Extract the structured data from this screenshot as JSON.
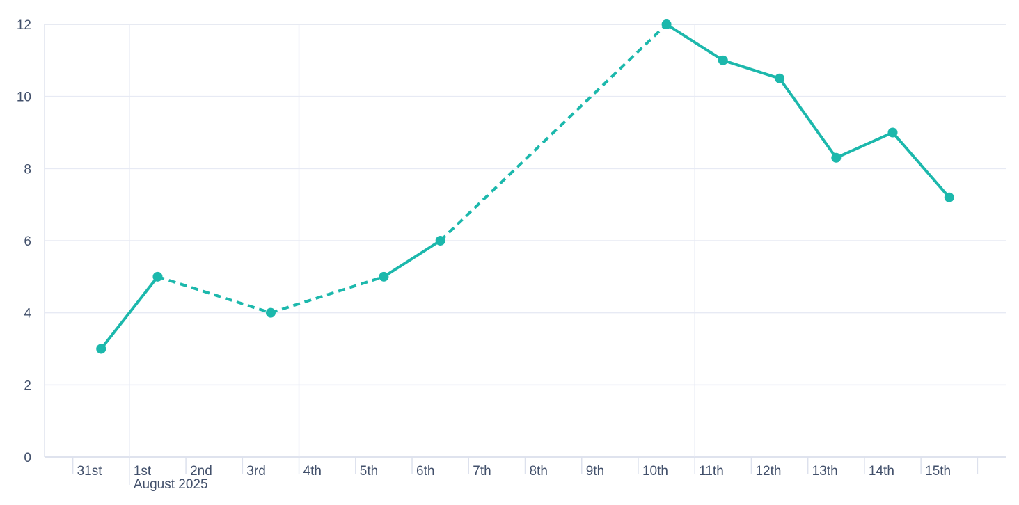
{
  "chart_data": {
    "type": "line",
    "title": "",
    "xlabel": "",
    "ylabel": "",
    "ylim": [
      0,
      12
    ],
    "x_unit": "day",
    "legend": "none",
    "series": [
      {
        "name": "daily-values",
        "color": "#1cb8ac",
        "marker": "circle",
        "gap_segments_dashed": true,
        "points": [
          {
            "day_label": "31st",
            "day_offset": 0,
            "value": 3
          },
          {
            "day_label": "1st",
            "day_offset": 1,
            "value": 5
          },
          {
            "day_label": "3rd",
            "day_offset": 3,
            "value": 4
          },
          {
            "day_label": "5th",
            "day_offset": 5,
            "value": 5
          },
          {
            "day_label": "6th",
            "day_offset": 6,
            "value": 6
          },
          {
            "day_label": "10th",
            "day_offset": 10,
            "value": 12
          },
          {
            "day_label": "11th",
            "day_offset": 11,
            "value": 11
          },
          {
            "day_label": "12th",
            "day_offset": 12,
            "value": 10.5
          },
          {
            "day_label": "13th",
            "day_offset": 13,
            "value": 8.3
          },
          {
            "day_label": "14th",
            "day_offset": 14,
            "value": 9
          },
          {
            "day_label": "15th",
            "day_offset": 15,
            "value": 7.2
          }
        ]
      }
    ],
    "x_axis": {
      "tick_labels": [
        "31st",
        "1st",
        "2nd",
        "3rd",
        "4th",
        "5th",
        "6th",
        "7th",
        "8th",
        "9th",
        "10th",
        "11th",
        "12th",
        "13th",
        "14th",
        "15th",
        ""
      ],
      "month_label": "August 2025",
      "month_tick_day": 1
    },
    "y_axis": {
      "ticks": [
        0,
        2,
        4,
        6,
        8,
        10,
        12
      ],
      "min": 0,
      "max": 12
    },
    "grid": {
      "horizontal": true,
      "vertical_week_start_days": [
        1,
        4,
        11
      ]
    },
    "colors": {
      "line": "#1cb8ac",
      "grid": "#e7eaf4",
      "axis_border": "#dfe3ee",
      "tick": "#dde1ed",
      "text": "#42506b",
      "background": "#ffffff"
    }
  }
}
